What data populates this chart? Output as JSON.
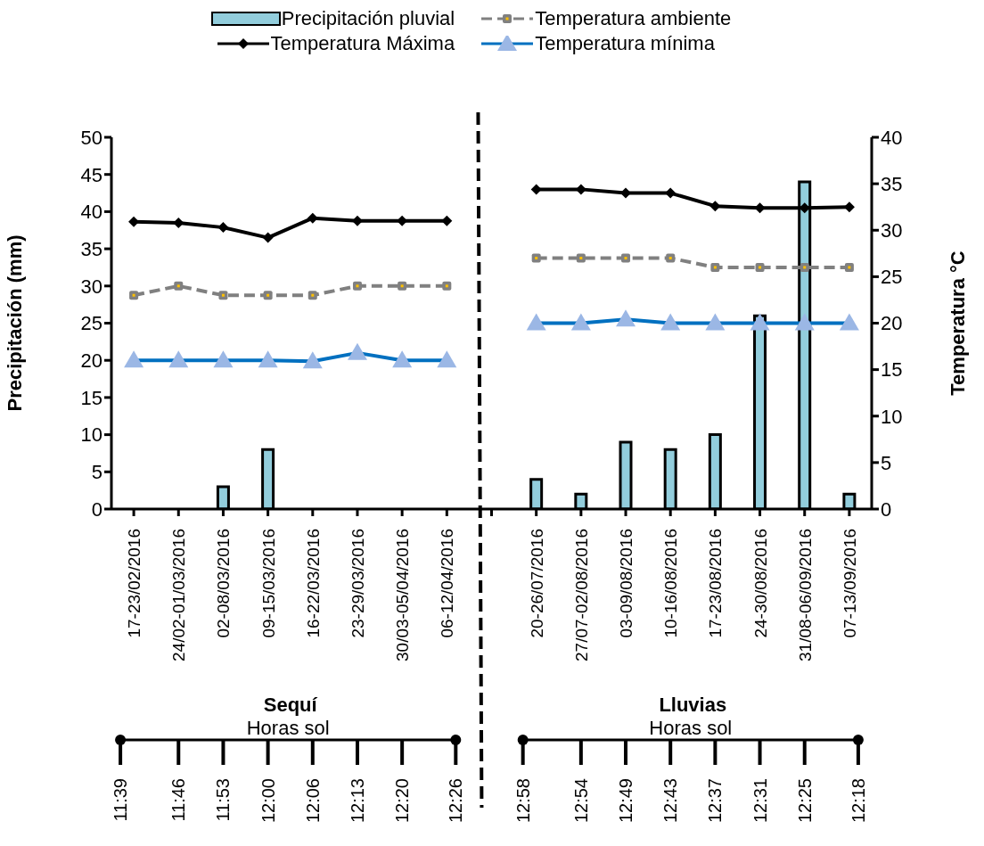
{
  "chart_data": {
    "type": "bar",
    "categories": [
      "17-23/02/2016",
      "24/02-01/03/2016",
      "02-08/03/2016",
      "09-15/03/2016",
      "16-22/03/2016",
      "23-29/03/2016",
      "30/03-05/04/2016",
      "06-12/04/2016",
      null,
      "20-26/07/2016",
      "27/07-02/08/2016",
      "03-09/08/2016",
      "10-16/08/2016",
      "17-23/08/2016",
      "24-30/08/2016",
      "31/08-06/09/2016",
      "07-13/09/2016"
    ],
    "series": [
      {
        "name": "Precipitación pluvial",
        "color": "#92cddc",
        "values": [
          0,
          0,
          3,
          8,
          0,
          0,
          0,
          0,
          null,
          4,
          2,
          9,
          8,
          10,
          26,
          44,
          2
        ]
      },
      {
        "name": "Temperatura ambiente",
        "type": "line",
        "axis": "y2",
        "color": "#808080",
        "line_style": "dashed",
        "marker": "square",
        "values": [
          23,
          24,
          23,
          23,
          23,
          24,
          24,
          24,
          null,
          27,
          27,
          27,
          27,
          26,
          26,
          26,
          26
        ]
      },
      {
        "name": "Temperatura Máxima",
        "type": "line",
        "axis": "y2",
        "color": "#000000",
        "line_style": "solid",
        "marker": "diamond",
        "values": [
          30.9,
          30.8,
          30.3,
          29.2,
          31.3,
          31,
          31,
          31,
          null,
          34.4,
          34.4,
          34,
          34,
          32.6,
          32.4,
          32.4,
          32.5
        ]
      },
      {
        "name": "Temperatura mínima",
        "type": "line",
        "axis": "y2",
        "color": "#0070c0",
        "line_style": "solid",
        "marker": "triangle",
        "values": [
          16,
          16,
          16,
          16,
          15.9,
          16.8,
          16,
          16,
          null,
          20,
          20,
          20.4,
          20,
          20,
          20,
          20,
          20
        ]
      }
    ],
    "ylabel": "Precipitación (mm)",
    "y2label": "Temperatura °C",
    "ylim": [
      0,
      50
    ],
    "yticks": [
      0,
      5,
      10,
      15,
      20,
      25,
      30,
      35,
      40,
      45,
      50
    ],
    "y2lim": [
      0,
      40
    ],
    "y2ticks": [
      0,
      5,
      10,
      15,
      20,
      25,
      30,
      35,
      40
    ],
    "legend": "top",
    "annotations": [
      "Sequí",
      "Lluvias",
      "Horas sol",
      "Horas sol",
      "11:39",
      "11:46",
      "11:53",
      "12:00",
      "12:06",
      "12:13",
      "12:20",
      "12:26",
      "12:58",
      "12:54",
      "12:49",
      "12:43",
      "12:37",
      "12:31",
      "12:25",
      "12:18"
    ]
  }
}
